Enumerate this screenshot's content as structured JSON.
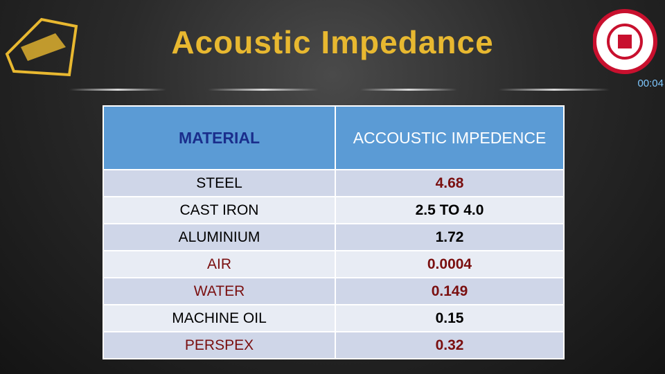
{
  "header": {
    "title": "Acoustic Impedance",
    "timer": "00:04"
  },
  "table": {
    "columns": [
      "MATERIAL",
      "ACCOUSTIC IMPEDENCE"
    ],
    "rows": [
      [
        "STEEL",
        "4.68"
      ],
      [
        "CAST IRON",
        "2.5 TO 4.0"
      ],
      [
        "ALUMINIUM",
        "1.72"
      ],
      [
        "AIR",
        "0.0004"
      ],
      [
        "WATER",
        "0.149"
      ],
      [
        "MACHINE OIL",
        "0.15"
      ],
      [
        "PERSPEX",
        "0.32"
      ]
    ]
  }
}
